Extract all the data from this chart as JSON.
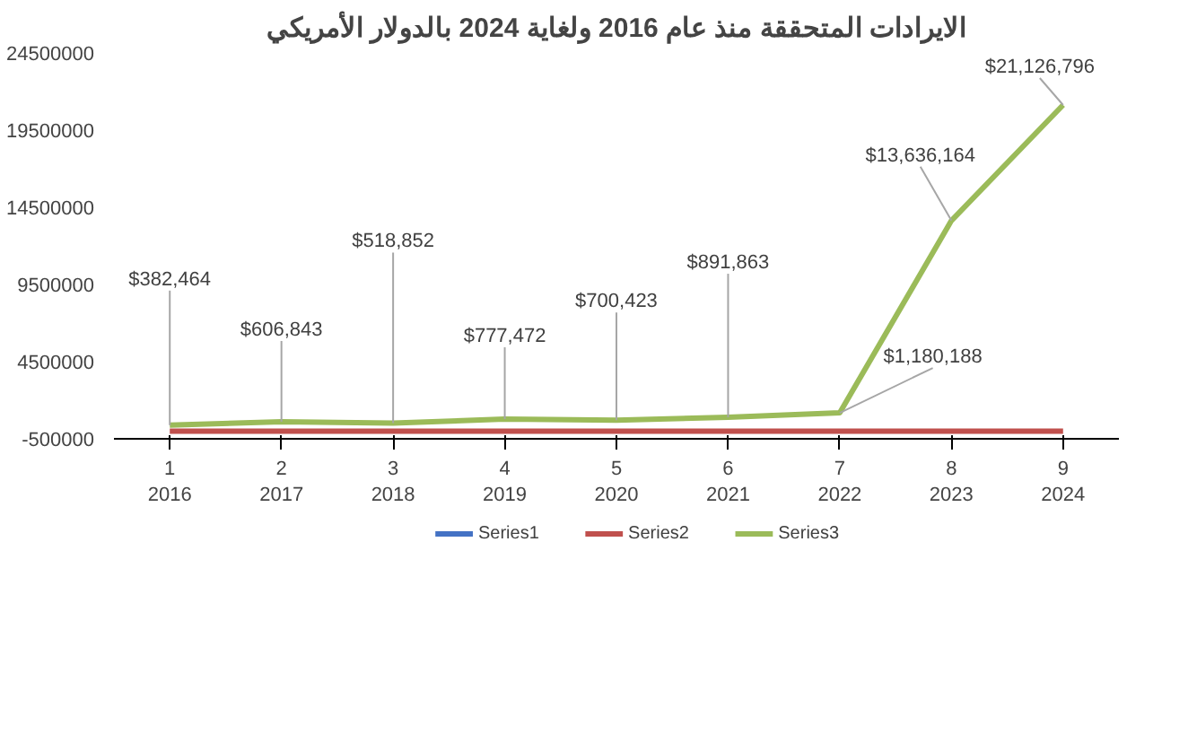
{
  "chart_data": {
    "type": "line",
    "title": "الايرادات المتحققة منذ عام 2016 ولغاية 2024 بالدولار الأمريكي",
    "categories": [
      "1\n2016",
      "2\n2017",
      "3\n2018",
      "4\n2019",
      "5\n2020",
      "6\n2021",
      "7\n2022",
      "8\n2023",
      "9\n2024"
    ],
    "series": [
      {
        "name": "Series1",
        "color": "#4472c4",
        "values": [
          null,
          null,
          null,
          null,
          null,
          null,
          null,
          null,
          null
        ]
      },
      {
        "name": "Series2",
        "color": "#c0504d",
        "values": [
          0,
          0,
          0,
          0,
          0,
          0,
          0,
          0,
          0
        ]
      },
      {
        "name": "Series3",
        "color": "#9bbb59",
        "values": [
          382464,
          606843,
          518852,
          777472,
          700423,
          891863,
          1180188,
          13636164,
          21126796
        ],
        "value_labels": [
          "$382,464",
          "$606,843",
          "$518,852",
          "$777,472",
          "$700,423",
          "$891,863",
          "$1,180,188",
          "$13,636,164",
          "$21,126,796"
        ]
      }
    ],
    "ylim": [
      -500000,
      24500000
    ],
    "yticks": [
      -500000,
      4500000,
      9500000,
      14500000,
      19500000,
      24500000
    ],
    "grid": false,
    "legend": "bottom",
    "marker": "none",
    "line_style": "solid"
  }
}
